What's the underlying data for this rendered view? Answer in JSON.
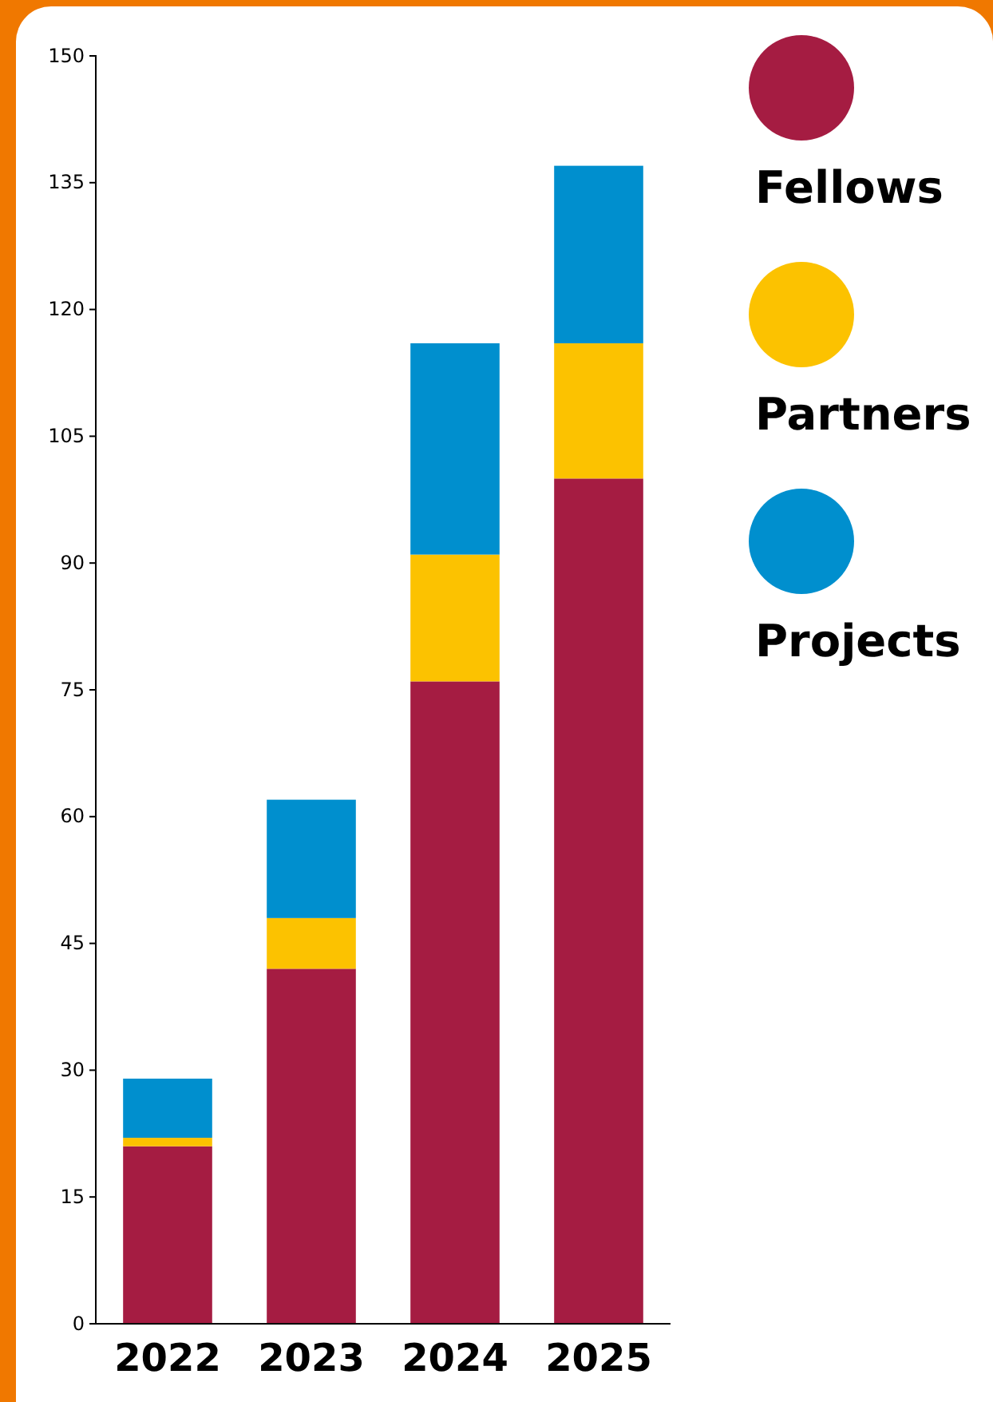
{
  "chart_data": {
    "type": "bar",
    "stacked": true,
    "categories": [
      "2022",
      "2023",
      "2024",
      "2025"
    ],
    "series": [
      {
        "name": "Fellows",
        "color": "#a51c42",
        "values": [
          21,
          42,
          76,
          100
        ]
      },
      {
        "name": "Partners",
        "color": "#fcc200",
        "values": [
          1,
          6,
          15,
          16
        ]
      },
      {
        "name": "Projects",
        "color": "#008fce",
        "values": [
          7,
          14,
          25,
          21
        ]
      }
    ],
    "ylim": [
      0,
      150
    ],
    "yticks": [
      0,
      15,
      30,
      45,
      60,
      75,
      90,
      105,
      120,
      135,
      150
    ],
    "grid": false,
    "legend": "top right"
  }
}
